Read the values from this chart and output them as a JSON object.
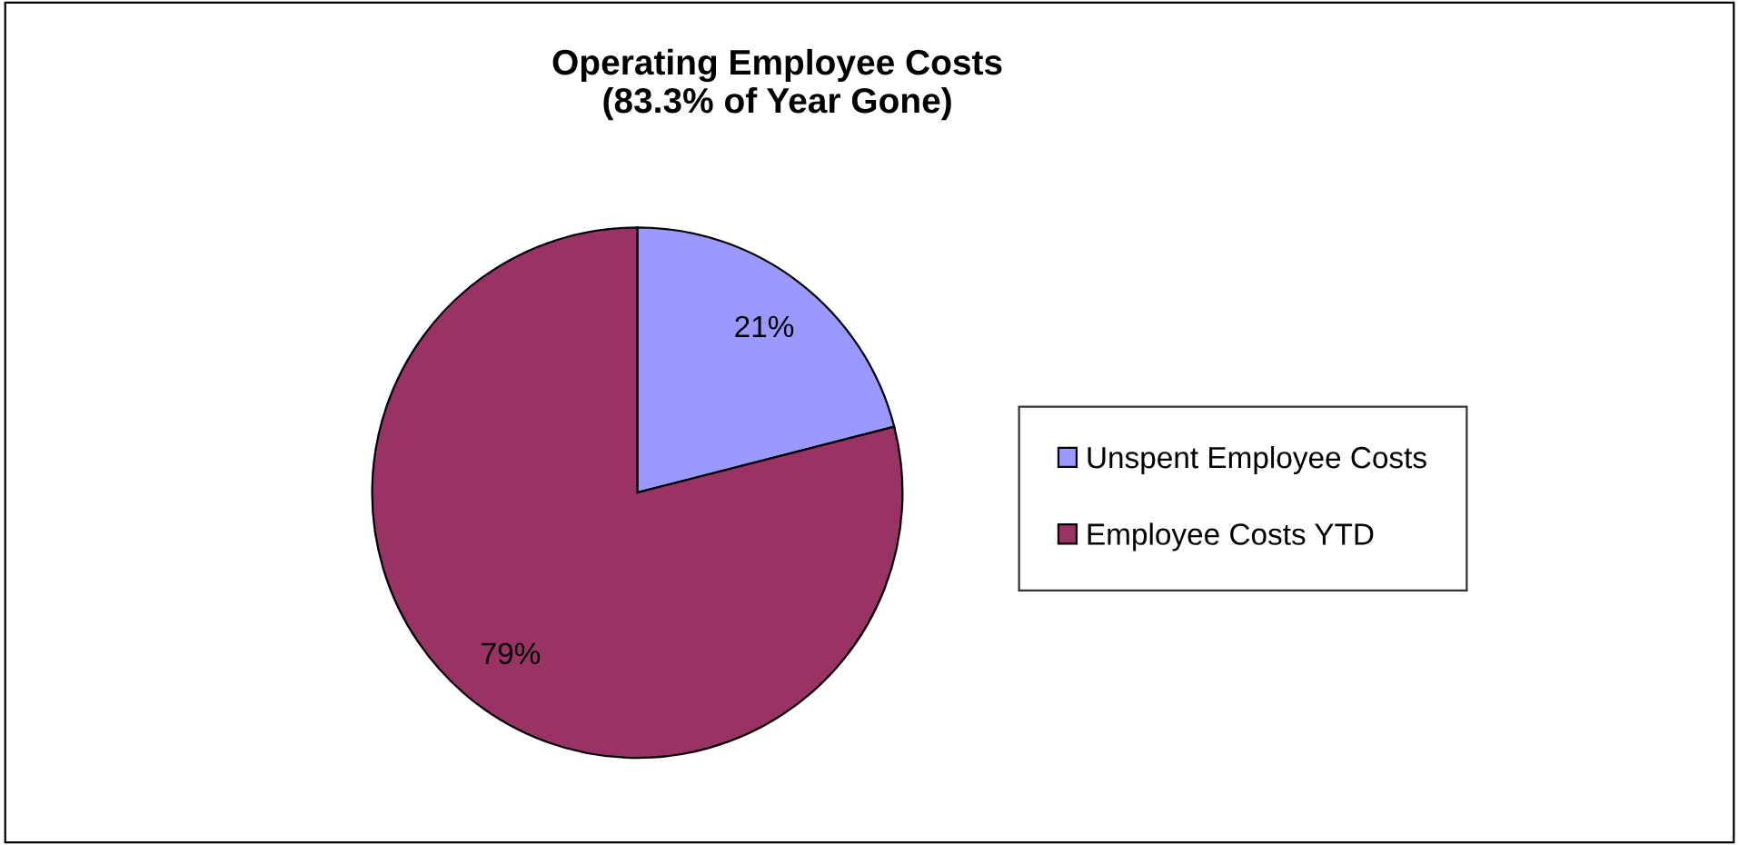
{
  "chart_data": {
    "type": "pie",
    "title": "Operating Employee Costs\n(83.3% of Year Gone)",
    "categories": [
      "Unspent Employee Costs",
      "Employee Costs YTD"
    ],
    "values": [
      21,
      79
    ],
    "colors": [
      "#9999ff",
      "#993366"
    ],
    "value_labels": [
      "21%",
      "79%"
    ],
    "legend": "right"
  }
}
